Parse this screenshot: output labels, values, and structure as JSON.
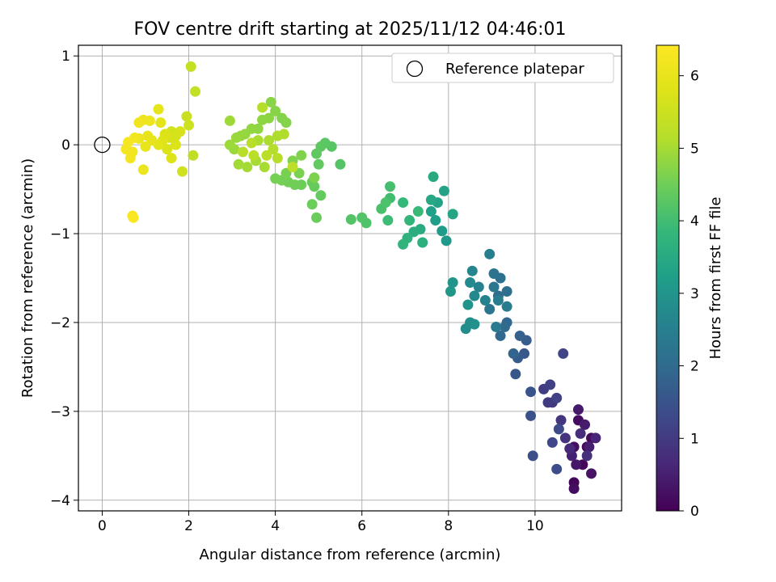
{
  "chart_data": {
    "type": "scatter",
    "title": "FOV centre drift starting at 2025/11/12 04:46:01",
    "xlabel": "Angular distance from reference (arcmin)",
    "ylabel": "Rotation from reference (arcmin)",
    "xlim": [
      -0.55,
      12.0
    ],
    "ylim": [
      -4.12,
      1.12
    ],
    "xticks": [
      0,
      2,
      4,
      6,
      8,
      10
    ],
    "yticks": [
      -4,
      -3,
      -2,
      -1,
      0,
      1
    ],
    "xtick_labels": [
      "0",
      "2",
      "4",
      "6",
      "8",
      "10"
    ],
    "ytick_labels": [
      "−4",
      "−3",
      "−2",
      "−1",
      "0",
      "1"
    ],
    "grid": true,
    "legend": {
      "position": "top-right",
      "entries": [
        {
          "label": "Reference platepar",
          "marker": "open-circle"
        }
      ]
    },
    "colorbar": {
      "label": "Hours from first FF file",
      "colormap": "viridis",
      "range": [
        0,
        6.42
      ],
      "ticks": [
        0,
        1,
        2,
        3,
        4,
        5,
        6
      ],
      "tick_labels": [
        "0",
        "1",
        "2",
        "3",
        "4",
        "5",
        "6"
      ]
    },
    "reference_point": {
      "x": 0,
      "y": 0
    },
    "points": [
      [
        11.2,
        -3.4,
        0.1
      ],
      [
        11.3,
        -3.3,
        0.15
      ],
      [
        11.0,
        -3.1,
        0.2
      ],
      [
        10.9,
        -3.4,
        0.25
      ],
      [
        11.1,
        -3.6,
        0.1
      ],
      [
        11.3,
        -3.7,
        0.3
      ],
      [
        10.9,
        -3.8,
        0.05
      ],
      [
        10.95,
        -3.6,
        0.35
      ],
      [
        11.0,
        -2.98,
        0.4
      ],
      [
        11.15,
        -3.15,
        0.45
      ],
      [
        11.25,
        -3.4,
        0.5
      ],
      [
        10.85,
        -3.5,
        0.55
      ],
      [
        11.4,
        -3.3,
        0.6
      ],
      [
        10.9,
        -3.87,
        0.2
      ],
      [
        10.8,
        -3.42,
        0.7
      ],
      [
        11.05,
        -3.25,
        0.75
      ],
      [
        11.2,
        -3.5,
        0.8
      ],
      [
        10.7,
        -3.3,
        0.85
      ],
      [
        10.6,
        -3.1,
        0.9
      ],
      [
        10.4,
        -2.9,
        0.95
      ],
      [
        10.3,
        -2.9,
        1.0
      ],
      [
        10.2,
        -2.75,
        1.05
      ],
      [
        10.35,
        -2.7,
        1.1
      ],
      [
        10.5,
        -2.85,
        1.15
      ],
      [
        10.65,
        -2.35,
        1.2
      ],
      [
        10.4,
        -3.35,
        1.25
      ],
      [
        10.55,
        -3.2,
        1.3
      ],
      [
        10.5,
        -3.65,
        1.35
      ],
      [
        9.95,
        -3.5,
        1.4
      ],
      [
        9.9,
        -3.05,
        1.45
      ],
      [
        9.9,
        -2.78,
        1.5
      ],
      [
        9.55,
        -2.58,
        1.55
      ],
      [
        9.75,
        -2.35,
        1.6
      ],
      [
        9.6,
        -2.4,
        1.65
      ],
      [
        9.8,
        -2.2,
        1.7
      ],
      [
        9.65,
        -2.15,
        1.8
      ],
      [
        9.5,
        -2.35,
        1.85
      ],
      [
        9.35,
        -2.0,
        1.9
      ],
      [
        9.2,
        -2.15,
        1.95
      ],
      [
        9.3,
        -2.05,
        2.0
      ],
      [
        9.15,
        -1.7,
        2.05
      ],
      [
        9.35,
        -1.65,
        2.1
      ],
      [
        9.2,
        -1.5,
        2.15
      ],
      [
        9.05,
        -1.45,
        2.2
      ],
      [
        8.95,
        -1.85,
        2.25
      ],
      [
        9.05,
        -1.6,
        2.3
      ],
      [
        9.1,
        -2.05,
        2.35
      ],
      [
        9.35,
        -1.82,
        2.4
      ],
      [
        9.15,
        -1.75,
        2.45
      ],
      [
        8.95,
        -1.23,
        2.5
      ],
      [
        8.85,
        -1.75,
        2.55
      ],
      [
        8.7,
        -1.6,
        2.6
      ],
      [
        8.55,
        -1.42,
        2.65
      ],
      [
        8.6,
        -1.7,
        2.7
      ],
      [
        8.5,
        -1.55,
        2.75
      ],
      [
        8.4,
        -2.07,
        2.8
      ],
      [
        8.5,
        -2.0,
        2.85
      ],
      [
        8.6,
        -2.02,
        2.9
      ],
      [
        8.45,
        -1.8,
        2.95
      ],
      [
        8.1,
        -1.55,
        3.0
      ],
      [
        8.05,
        -1.65,
        3.05
      ],
      [
        7.95,
        -1.08,
        3.1
      ],
      [
        7.85,
        -0.97,
        3.15
      ],
      [
        7.7,
        -0.85,
        3.2
      ],
      [
        7.6,
        -0.75,
        3.25
      ],
      [
        7.75,
        -0.65,
        3.3
      ],
      [
        7.9,
        -0.52,
        3.35
      ],
      [
        8.1,
        -0.78,
        3.4
      ],
      [
        7.6,
        -0.62,
        3.45
      ],
      [
        7.65,
        -0.36,
        3.5
      ],
      [
        7.35,
        -0.95,
        3.55
      ],
      [
        7.2,
        -0.98,
        3.6
      ],
      [
        7.4,
        -1.1,
        3.65
      ],
      [
        7.05,
        -1.05,
        3.7
      ],
      [
        6.95,
        -1.12,
        3.75
      ],
      [
        7.1,
        -0.85,
        3.8
      ],
      [
        6.95,
        -0.65,
        3.85
      ],
      [
        7.3,
        -0.75,
        3.9
      ],
      [
        6.6,
        -0.85,
        3.95
      ],
      [
        6.65,
        -0.6,
        4.0
      ],
      [
        6.65,
        -0.47,
        4.05
      ],
      [
        6.45,
        -0.72,
        4.1
      ],
      [
        6.55,
        -0.65,
        4.12
      ],
      [
        6.1,
        -0.88,
        4.15
      ],
      [
        6.0,
        -0.82,
        4.18
      ],
      [
        5.75,
        -0.84,
        4.2
      ],
      [
        5.5,
        -0.22,
        4.22
      ],
      [
        5.3,
        -0.02,
        4.25
      ],
      [
        5.15,
        0.02,
        4.27
      ],
      [
        5.05,
        -0.02,
        4.3
      ],
      [
        4.95,
        -0.1,
        4.32
      ],
      [
        5.0,
        -0.22,
        4.35
      ],
      [
        5.05,
        -0.57,
        4.37
      ],
      [
        4.9,
        -0.47,
        4.4
      ],
      [
        4.85,
        -0.42,
        4.42
      ],
      [
        4.95,
        -0.82,
        4.44
      ],
      [
        4.85,
        -0.67,
        4.46
      ],
      [
        4.6,
        -0.45,
        4.48
      ],
      [
        4.45,
        -0.45,
        4.5
      ],
      [
        4.3,
        -0.42,
        4.52
      ],
      [
        4.15,
        -0.4,
        4.54
      ],
      [
        4.0,
        -0.38,
        4.56
      ],
      [
        4.25,
        -0.32,
        4.58
      ],
      [
        4.55,
        -0.32,
        4.6
      ],
      [
        4.9,
        -0.37,
        4.62
      ],
      [
        4.4,
        -0.18,
        4.64
      ],
      [
        4.6,
        -0.12,
        4.66
      ],
      [
        4.25,
        0.25,
        4.68
      ],
      [
        4.15,
        0.3,
        4.7
      ],
      [
        4.0,
        0.38,
        4.72
      ],
      [
        3.9,
        0.48,
        4.74
      ],
      [
        3.85,
        0.3,
        4.76
      ],
      [
        3.7,
        0.28,
        4.78
      ],
      [
        3.6,
        0.18,
        4.8
      ],
      [
        3.45,
        0.18,
        4.82
      ],
      [
        3.3,
        0.12,
        4.84
      ],
      [
        3.2,
        0.1,
        4.86
      ],
      [
        3.1,
        0.08,
        4.88
      ],
      [
        3.05,
        -0.05,
        4.9
      ],
      [
        2.95,
        0.0,
        4.92
      ],
      [
        2.95,
        0.27,
        4.94
      ],
      [
        3.15,
        -0.22,
        4.96
      ],
      [
        3.35,
        -0.25,
        4.98
      ],
      [
        3.55,
        -0.18,
        5.0
      ],
      [
        3.75,
        -0.25,
        5.02
      ],
      [
        3.6,
        0.05,
        5.04
      ],
      [
        3.85,
        0.05,
        5.06
      ],
      [
        4.05,
        0.1,
        5.08
      ],
      [
        4.2,
        0.12,
        5.1
      ],
      [
        3.95,
        -0.05,
        5.12
      ],
      [
        3.7,
        0.42,
        5.14
      ],
      [
        4.05,
        -0.15,
        5.16
      ],
      [
        3.25,
        -0.08,
        5.18
      ],
      [
        3.45,
        0.02,
        5.2
      ],
      [
        3.5,
        -0.12,
        5.22
      ],
      [
        3.8,
        -0.12,
        5.24
      ],
      [
        4.4,
        -0.25,
        5.26
      ],
      [
        2.1,
        -0.12,
        5.3
      ],
      [
        2.15,
        0.6,
        5.35
      ],
      [
        2.05,
        0.88,
        5.4
      ],
      [
        1.95,
        0.32,
        5.45
      ],
      [
        2.0,
        0.22,
        5.5
      ],
      [
        1.85,
        -0.3,
        5.55
      ],
      [
        1.6,
        0.15,
        5.6
      ],
      [
        1.7,
        0.1,
        5.65
      ],
      [
        1.55,
        0.08,
        5.7
      ],
      [
        1.5,
        -0.05,
        5.75
      ],
      [
        1.6,
        -0.15,
        5.8
      ],
      [
        1.4,
        0.05,
        5.85
      ],
      [
        1.3,
        0.0,
        5.9
      ],
      [
        1.35,
        0.25,
        5.92
      ],
      [
        1.3,
        0.4,
        5.95
      ],
      [
        1.15,
        0.05,
        5.98
      ],
      [
        1.05,
        0.1,
        6.0
      ],
      [
        1.0,
        -0.02,
        6.02
      ],
      [
        0.95,
        -0.28,
        6.05
      ],
      [
        0.85,
        0.07,
        6.08
      ],
      [
        0.95,
        0.28,
        6.1
      ],
      [
        1.1,
        0.27,
        6.12
      ],
      [
        0.85,
        0.25,
        6.15
      ],
      [
        0.75,
        0.08,
        6.18
      ],
      [
        0.7,
        -0.08,
        6.2
      ],
      [
        0.65,
        -0.15,
        6.22
      ],
      [
        0.55,
        -0.05,
        6.25
      ],
      [
        0.6,
        0.03,
        6.28
      ],
      [
        0.7,
        -0.8,
        6.3
      ],
      [
        0.72,
        -0.82,
        6.35
      ],
      [
        1.8,
        0.15,
        5.7
      ],
      [
        1.7,
        0.0,
        5.75
      ],
      [
        1.45,
        0.12,
        5.8
      ]
    ]
  }
}
